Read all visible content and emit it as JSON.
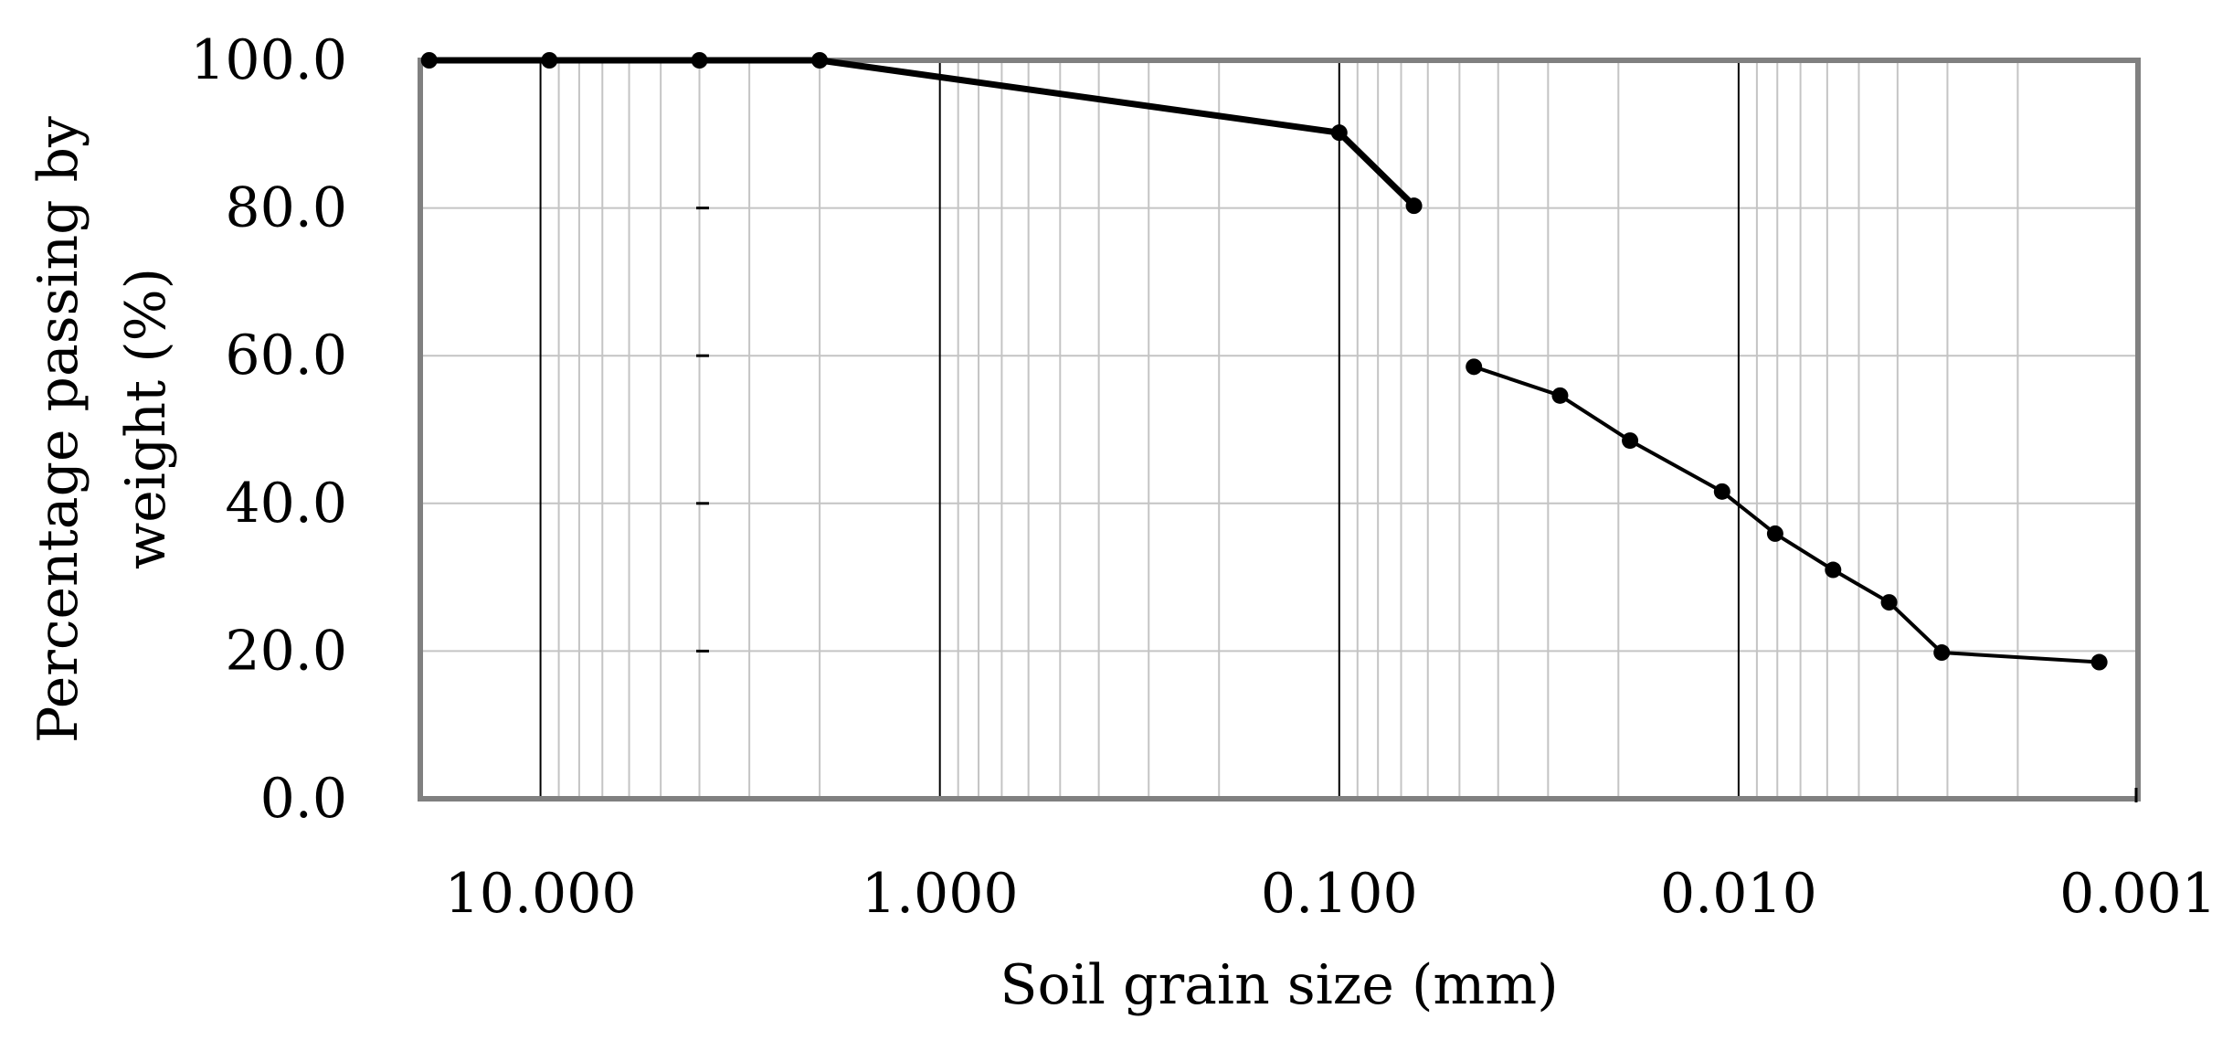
{
  "chart_data": {
    "type": "line",
    "title": "",
    "xlabel": "Soil grain size (mm)",
    "ylabel_lines": [
      "Percentage passing by",
      "weight (%)"
    ],
    "x_scale": "log",
    "x_reversed": true,
    "xlim": [
      20,
      0.001
    ],
    "ylim": [
      0,
      100
    ],
    "x_ticks": [
      10,
      1,
      0.1,
      0.01,
      0.001
    ],
    "x_tick_labels": [
      "10.000",
      "1.000",
      "0.100",
      "0.010",
      "0.001"
    ],
    "y_ticks": [
      0,
      20,
      40,
      60,
      80,
      100
    ],
    "y_tick_labels": [
      "0.0",
      "20.0",
      "40.0",
      "60.0",
      "80.0",
      "100.0"
    ],
    "grid": true,
    "legend": "none",
    "series": [
      {
        "x": [
          19.0,
          9.5,
          4.0,
          2.0,
          0.1,
          0.065
        ],
        "y": [
          100.0,
          100.0,
          100.0,
          100.0,
          90.2,
          80.3
        ],
        "line_width": "thick",
        "color": "#000000"
      },
      {
        "x": [
          0.046,
          0.028,
          0.0187,
          0.011,
          0.0081,
          0.0058,
          0.0042,
          0.0031,
          0.00125
        ],
        "y": [
          58.5,
          54.6,
          48.5,
          41.6,
          35.9,
          31.0,
          26.6,
          19.8,
          18.5
        ],
        "line_width": "thin",
        "color": "#000000"
      }
    ]
  }
}
